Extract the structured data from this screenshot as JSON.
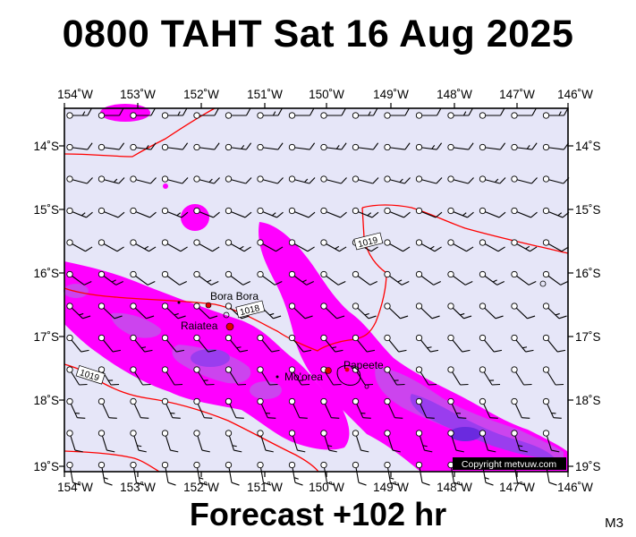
{
  "title": "0800 TAHT Sat 16 Aug 2025",
  "footer": "Forecast +102 hr",
  "model_label": "M3",
  "copyright": "Copyright metvuw.com",
  "lon_labels": [
    "154˚W",
    "153˚W",
    "152˚W",
    "151˚W",
    "150˚W",
    "149˚W",
    "148˚W",
    "147˚W",
    "146˚W"
  ],
  "lat_labels": [
    "14˚S",
    "15˚S",
    "16˚S",
    "17˚S",
    "18˚S",
    "19˚S"
  ],
  "isobar_labels": [
    "1019",
    "1018",
    "1019"
  ],
  "places": [
    "Bora Bora",
    "Raiatea",
    "Mo'orea",
    "Papeete"
  ],
  "colors": {
    "ocean": "#e6e6f8",
    "rain_light": "#ff00ff",
    "rain_medium": "#cc44ee",
    "rain_heavy": "#9a3dee",
    "rain_extreme": "#6a2adf",
    "isobar": "#ff0000",
    "land": "#e00000"
  },
  "legend_note": ""
}
